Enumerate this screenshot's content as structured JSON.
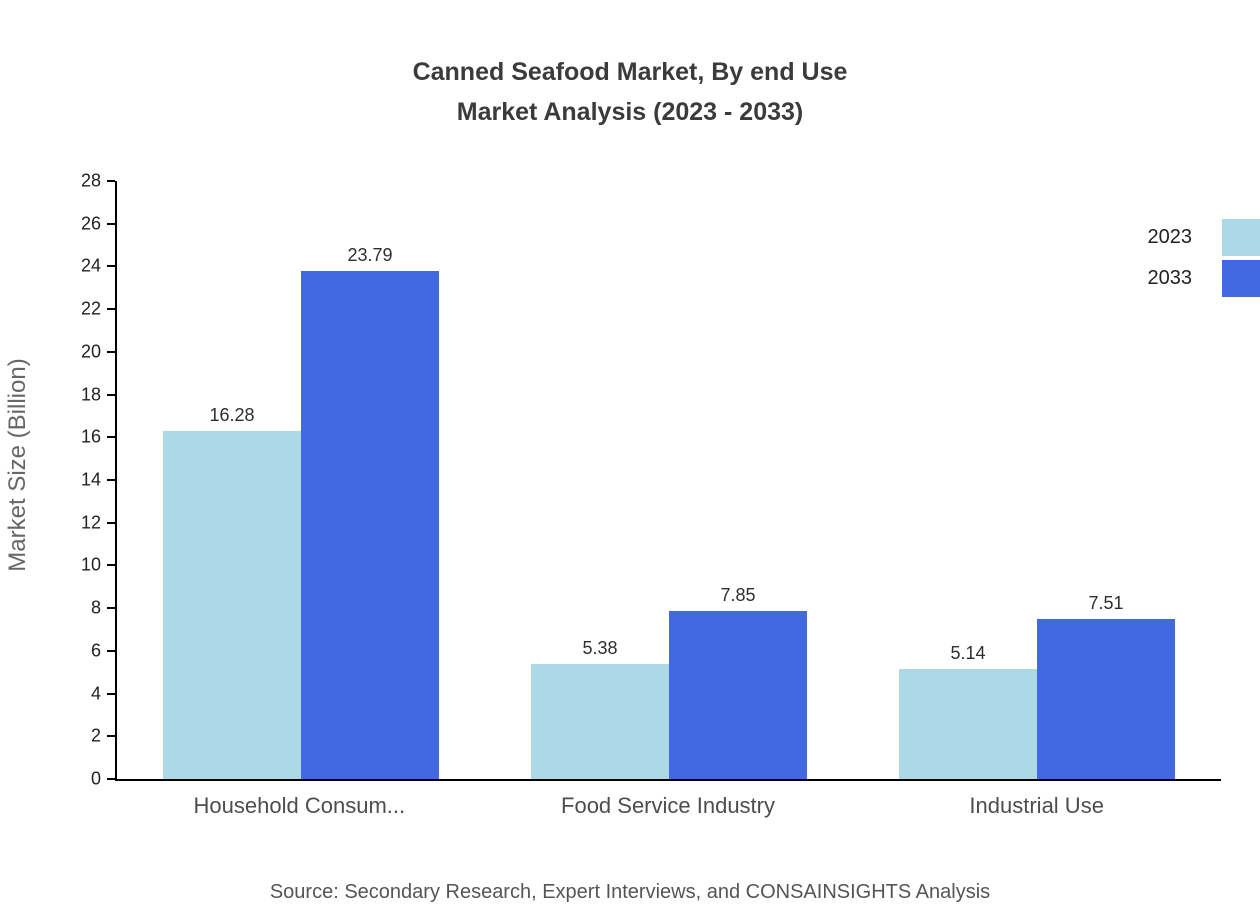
{
  "title": {
    "line1": "Canned Seafood Market, By end Use",
    "line2": "Market Analysis (2023 - 2033)"
  },
  "source": "Source: Secondary Research, Expert Interviews, and CONSAINSIGHTS Analysis",
  "chart_data": {
    "type": "bar",
    "categories": [
      "Household Consum...",
      "Food Service Industry",
      "Industrial Use"
    ],
    "series": [
      {
        "name": "2023",
        "color": "#add8e6",
        "values": [
          16.28,
          5.38,
          5.14
        ]
      },
      {
        "name": "2033",
        "color": "#4169e1",
        "values": [
          23.79,
          7.85,
          7.51
        ]
      }
    ],
    "title": "Canned Seafood Market, By end Use Market Analysis (2023 - 2033)",
    "xlabel": "",
    "ylabel": "Market Size (Billion)",
    "ylim": [
      0,
      28
    ],
    "ytick_step": 2,
    "value_decimals": 2,
    "grid": false,
    "legend_position": "top-right"
  },
  "colors": {
    "axis": "#000000",
    "title_text": "#3b3b3b",
    "category_text": "#4d4d4d",
    "value_text": "#2e2e2e",
    "source_text": "#555555"
  }
}
